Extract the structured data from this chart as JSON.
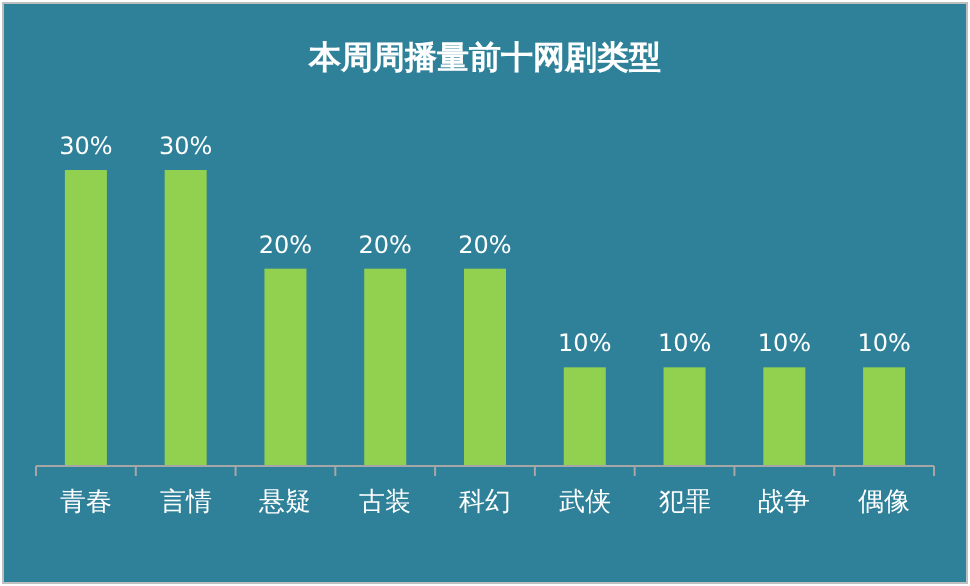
{
  "chart_data": {
    "type": "bar",
    "title": "本周周播量前十网剧类型",
    "categories": [
      "青春",
      "言情",
      "悬疑",
      "古装",
      "科幻",
      "武侠",
      "犯罪",
      "战争",
      "偶像"
    ],
    "values": [
      30,
      30,
      20,
      20,
      20,
      10,
      10,
      10,
      10
    ],
    "value_labels": [
      "30%",
      "30%",
      "20%",
      "20%",
      "20%",
      "10%",
      "10%",
      "10%",
      "10%"
    ],
    "color": "#92d050"
  }
}
